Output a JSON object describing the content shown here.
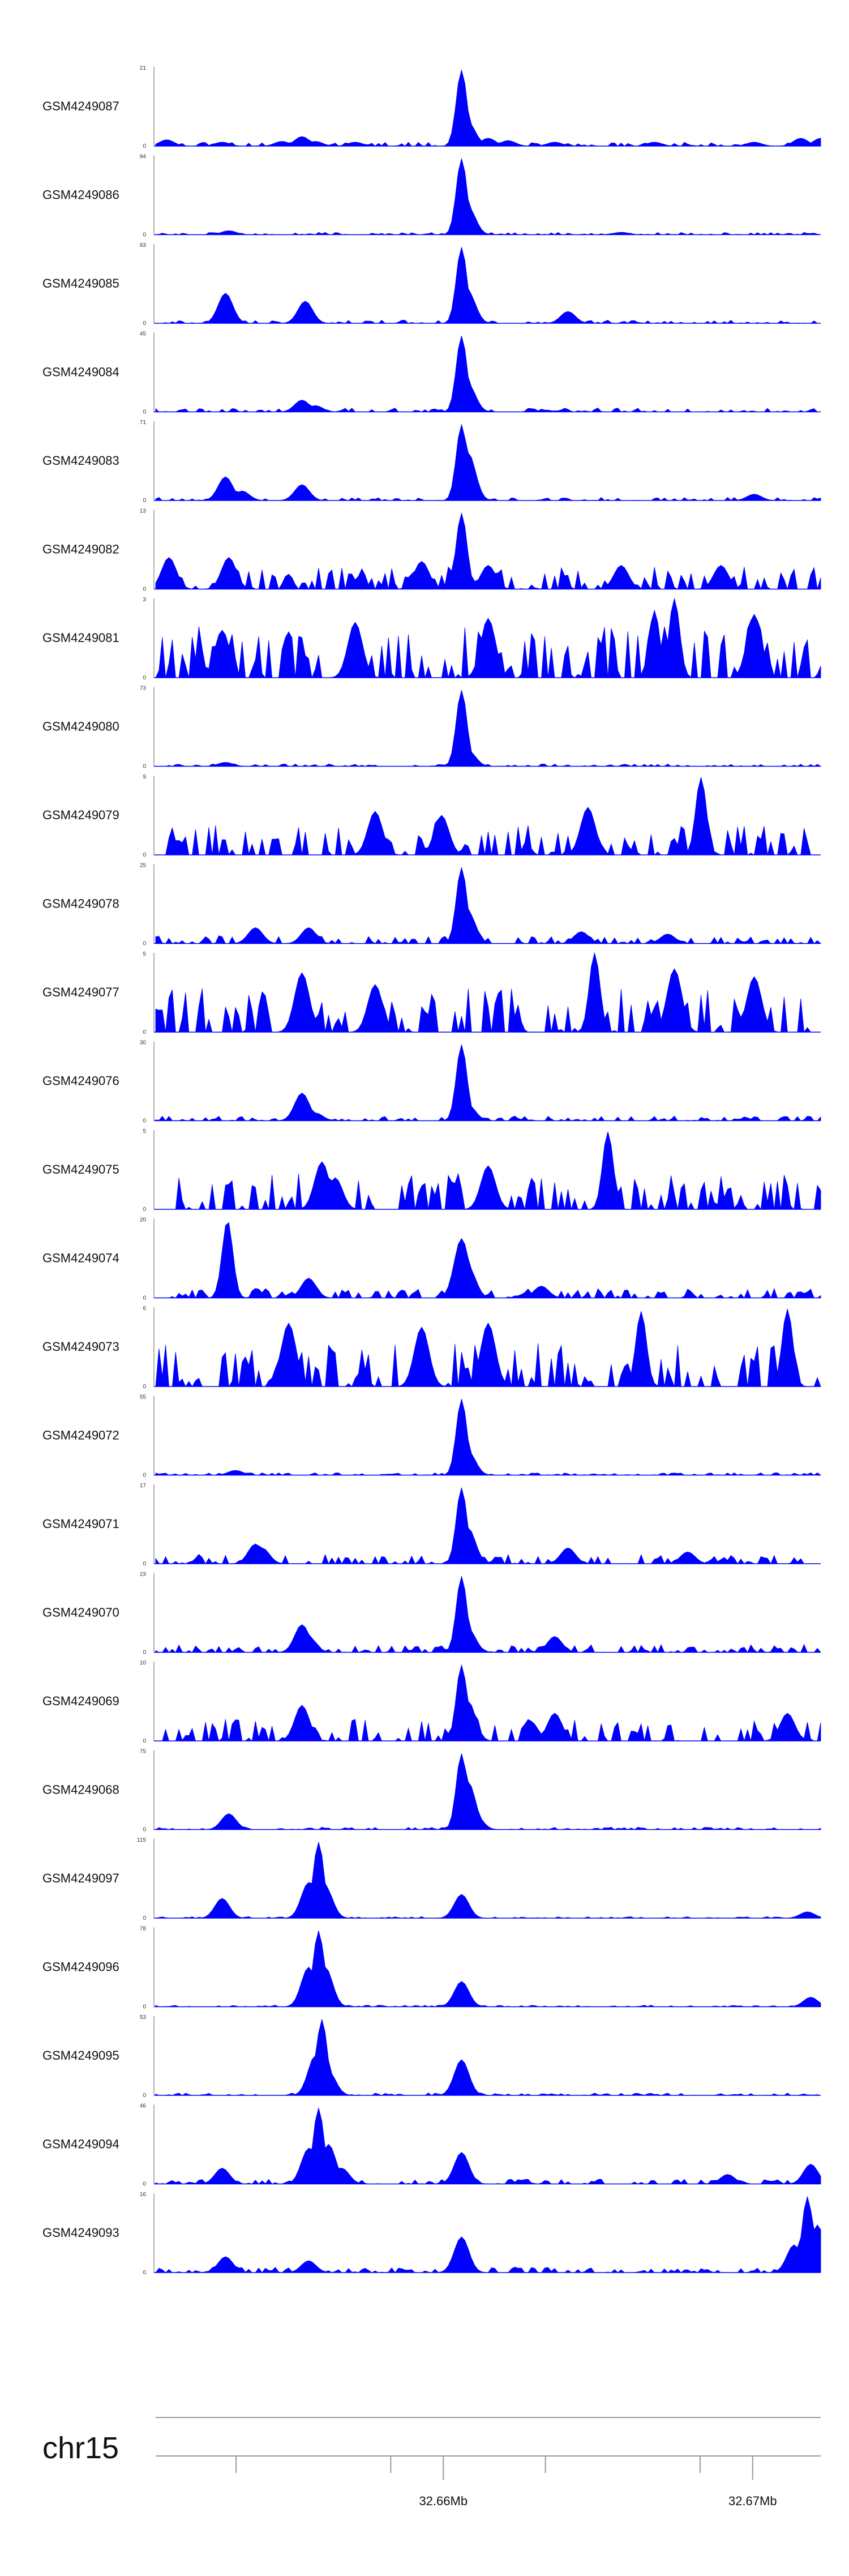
{
  "chart_data": {
    "type": "area",
    "title": "",
    "chromosome": "chr15",
    "region_mb": [
      32.6507,
      32.6722
    ],
    "x_ticks_mb": [
      32.6533,
      32.6583,
      32.6633,
      32.6683
    ],
    "x_labels": [
      {
        "pos_mb": 32.66,
        "label": "32.66Mb"
      },
      {
        "pos_mb": 32.67,
        "label": "32.67Mb"
      }
    ],
    "color": "#0000ff",
    "tracks": [
      {
        "name": "GSM4249087",
        "ymax": "21",
        "ymin": "0",
        "peaks": [
          [
            0.0167,
            0.08
          ],
          [
            0.1,
            0.05
          ],
          [
            0.19,
            0.06
          ],
          [
            0.24,
            0.06
          ],
          [
            0.22,
            0.12
          ],
          [
            0.3,
            0.05
          ],
          [
            0.46,
            0.96
          ],
          [
            0.47,
            0.3
          ],
          [
            0.5,
            0.1
          ],
          [
            0.53,
            0.07
          ],
          [
            0.6,
            0.05
          ],
          [
            0.75,
            0.05
          ],
          [
            0.9,
            0.05
          ],
          [
            0.97,
            0.1
          ],
          [
            1.0,
            0.1
          ]
        ],
        "noise": 0.05,
        "seed": 11
      },
      {
        "name": "GSM4249086",
        "ymax": "94",
        "ymin": "0",
        "peaks": [
          [
            0.11,
            0.05
          ],
          [
            0.46,
            0.96
          ],
          [
            0.47,
            0.35
          ],
          [
            0.7,
            0.03
          ]
        ],
        "noise": 0.03,
        "seed": 12
      },
      {
        "name": "GSM4249085",
        "ymax": "63",
        "ymin": "0",
        "peaks": [
          [
            0.105,
            0.38
          ],
          [
            0.225,
            0.28
          ],
          [
            0.46,
            0.96
          ],
          [
            0.47,
            0.4
          ],
          [
            0.62,
            0.15
          ]
        ],
        "noise": 0.04,
        "seed": 13
      },
      {
        "name": "GSM4249084",
        "ymax": "45",
        "ymin": "0",
        "peaks": [
          [
            0.22,
            0.15
          ],
          [
            0.24,
            0.08
          ],
          [
            0.46,
            0.96
          ],
          [
            0.47,
            0.35
          ]
        ],
        "noise": 0.05,
        "seed": 14
      },
      {
        "name": "GSM4249083",
        "ymax": "71",
        "ymin": "0",
        "peaks": [
          [
            0.105,
            0.3
          ],
          [
            0.13,
            0.12
          ],
          [
            0.22,
            0.2
          ],
          [
            0.46,
            0.96
          ],
          [
            0.47,
            0.6
          ],
          [
            0.9,
            0.08
          ]
        ],
        "noise": 0.04,
        "seed": 15
      },
      {
        "name": "GSM4249082",
        "ymax": "13",
        "ymin": "0",
        "peaks": [
          [
            0.02,
            0.4
          ],
          [
            0.11,
            0.4
          ],
          [
            0.4,
            0.35
          ],
          [
            0.46,
            0.96
          ],
          [
            0.5,
            0.3
          ],
          [
            0.7,
            0.3
          ],
          [
            0.85,
            0.3
          ]
        ],
        "noise": 0.28,
        "seed": 16
      },
      {
        "name": "GSM4249081",
        "ymax": "3",
        "ymin": "0",
        "peaks": [
          [
            0.1,
            0.6
          ],
          [
            0.3,
            0.7
          ],
          [
            0.5,
            0.75
          ],
          [
            0.75,
            0.85
          ],
          [
            0.78,
            1.0
          ],
          [
            0.9,
            0.8
          ]
        ],
        "noise": 0.65,
        "seed": 17
      },
      {
        "name": "GSM4249080",
        "ymax": "73",
        "ymin": "0",
        "peaks": [
          [
            0.105,
            0.05
          ],
          [
            0.46,
            0.96
          ],
          [
            0.47,
            0.2
          ]
        ],
        "noise": 0.03,
        "seed": 18
      },
      {
        "name": "GSM4249079",
        "ymax": "9",
        "ymin": "0",
        "peaks": [
          [
            0.33,
            0.55
          ],
          [
            0.43,
            0.5
          ],
          [
            0.65,
            0.6
          ],
          [
            0.82,
            0.98
          ]
        ],
        "noise": 0.4,
        "seed": 19
      },
      {
        "name": "GSM4249078",
        "ymax": "25",
        "ymin": "0",
        "peaks": [
          [
            0.15,
            0.2
          ],
          [
            0.23,
            0.2
          ],
          [
            0.46,
            0.96
          ],
          [
            0.47,
            0.4
          ],
          [
            0.64,
            0.15
          ],
          [
            0.77,
            0.12
          ]
        ],
        "noise": 0.1,
        "seed": 20
      },
      {
        "name": "GSM4249077",
        "ymax": "5",
        "ymin": "0",
        "peaks": [
          [
            0.22,
            0.75
          ],
          [
            0.33,
            0.6
          ],
          [
            0.66,
            1.0
          ],
          [
            0.78,
            0.8
          ],
          [
            0.9,
            0.7
          ]
        ],
        "noise": 0.55,
        "seed": 21
      },
      {
        "name": "GSM4249076",
        "ymax": "30",
        "ymin": "0",
        "peaks": [
          [
            0.22,
            0.35
          ],
          [
            0.46,
            0.96
          ],
          [
            0.47,
            0.2
          ],
          [
            0.24,
            0.1
          ]
        ],
        "noise": 0.06,
        "seed": 22
      },
      {
        "name": "GSM4249075",
        "ymax": "5",
        "ymin": "0",
        "peaks": [
          [
            0.25,
            0.6
          ],
          [
            0.27,
            0.4
          ],
          [
            0.5,
            0.55
          ],
          [
            0.68,
            0.98
          ]
        ],
        "noise": 0.45,
        "seed": 23
      },
      {
        "name": "GSM4249074",
        "ymax": "20",
        "ymin": "0",
        "peaks": [
          [
            0.108,
            0.98
          ],
          [
            0.23,
            0.25
          ],
          [
            0.46,
            0.75
          ],
          [
            0.47,
            0.4
          ],
          [
            0.58,
            0.15
          ]
        ],
        "noise": 0.12,
        "seed": 24
      },
      {
        "name": "GSM4249073",
        "ymax": "6",
        "ymin": "0",
        "peaks": [
          [
            0.2,
            0.8
          ],
          [
            0.4,
            0.75
          ],
          [
            0.5,
            0.8
          ],
          [
            0.73,
            0.95
          ],
          [
            0.95,
            0.98
          ]
        ],
        "noise": 0.55,
        "seed": 25
      },
      {
        "name": "GSM4249072",
        "ymax": "55",
        "ymin": "0",
        "peaks": [
          [
            0.12,
            0.06
          ],
          [
            0.46,
            0.96
          ],
          [
            0.47,
            0.3
          ]
        ],
        "noise": 0.03,
        "seed": 26
      },
      {
        "name": "GSM4249071",
        "ymax": "17",
        "ymin": "0",
        "peaks": [
          [
            0.15,
            0.25
          ],
          [
            0.16,
            0.2
          ],
          [
            0.46,
            0.96
          ],
          [
            0.47,
            0.45
          ],
          [
            0.62,
            0.2
          ],
          [
            0.8,
            0.15
          ]
        ],
        "noise": 0.12,
        "seed": 27
      },
      {
        "name": "GSM4249070",
        "ymax": "23",
        "ymin": "0",
        "peaks": [
          [
            0.22,
            0.35
          ],
          [
            0.23,
            0.2
          ],
          [
            0.46,
            0.96
          ],
          [
            0.47,
            0.3
          ],
          [
            0.6,
            0.2
          ]
        ],
        "noise": 0.1,
        "seed": 28
      },
      {
        "name": "GSM4249069",
        "ymax": "10",
        "ymin": "0",
        "peaks": [
          [
            0.22,
            0.45
          ],
          [
            0.46,
            0.96
          ],
          [
            0.47,
            0.5
          ],
          [
            0.6,
            0.35
          ],
          [
            0.95,
            0.35
          ]
        ],
        "noise": 0.28,
        "seed": 29
      },
      {
        "name": "GSM4249068",
        "ymax": "75",
        "ymin": "0",
        "peaks": [
          [
            0.11,
            0.2
          ],
          [
            0.46,
            0.96
          ],
          [
            0.47,
            0.6
          ],
          [
            0.48,
            0.2
          ]
        ],
        "noise": 0.03,
        "seed": 30
      },
      {
        "name": "GSM4249097",
        "ymax": "115",
        "ymin": "0",
        "peaks": [
          [
            0.1,
            0.25
          ],
          [
            0.23,
            0.45
          ],
          [
            0.245,
            0.96
          ],
          [
            0.255,
            0.4
          ],
          [
            0.46,
            0.3
          ],
          [
            0.98,
            0.08
          ]
        ],
        "noise": 0.02,
        "seed": 31
      },
      {
        "name": "GSM4249096",
        "ymax": "78",
        "ymin": "0",
        "peaks": [
          [
            0.23,
            0.5
          ],
          [
            0.245,
            0.96
          ],
          [
            0.255,
            0.5
          ],
          [
            0.46,
            0.32
          ],
          [
            0.985,
            0.12
          ]
        ],
        "noise": 0.02,
        "seed": 32
      },
      {
        "name": "GSM4249095",
        "ymax": "53",
        "ymin": "0",
        "peaks": [
          [
            0.24,
            0.5
          ],
          [
            0.25,
            0.96
          ],
          [
            0.26,
            0.3
          ],
          [
            0.46,
            0.45
          ]
        ],
        "noise": 0.03,
        "seed": 33
      },
      {
        "name": "GSM4249094",
        "ymax": "46",
        "ymin": "0",
        "peaks": [
          [
            0.1,
            0.2
          ],
          [
            0.23,
            0.45
          ],
          [
            0.245,
            0.96
          ],
          [
            0.26,
            0.5
          ],
          [
            0.28,
            0.2
          ],
          [
            0.46,
            0.4
          ],
          [
            0.86,
            0.12
          ],
          [
            0.985,
            0.25
          ]
        ],
        "noise": 0.06,
        "seed": 34
      },
      {
        "name": "GSM4249093",
        "ymax": "16",
        "ymin": "0",
        "peaks": [
          [
            0.105,
            0.2
          ],
          [
            0.23,
            0.15
          ],
          [
            0.46,
            0.45
          ],
          [
            0.96,
            0.35
          ],
          [
            0.98,
            0.96
          ],
          [
            0.995,
            0.6
          ]
        ],
        "noise": 0.07,
        "seed": 35
      }
    ]
  }
}
